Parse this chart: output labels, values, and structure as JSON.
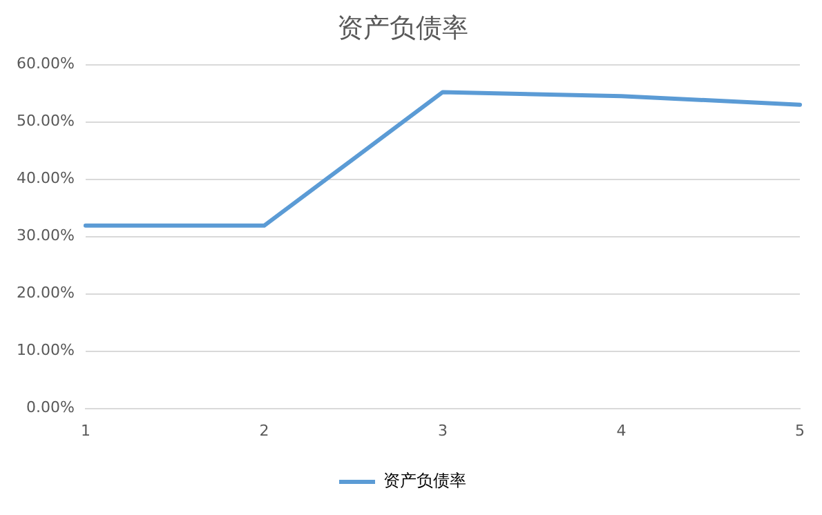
{
  "chart_data": {
    "type": "line",
    "title": "资产负债率",
    "categories": [
      "1",
      "2",
      "3",
      "4",
      "5"
    ],
    "series": [
      {
        "name": "资产负债率",
        "color": "#5b9bd5",
        "values": [
          31.9,
          31.9,
          55.2,
          54.5,
          53.0
        ]
      }
    ],
    "ylim": [
      0,
      60
    ],
    "yticks": [
      {
        "value": 0,
        "label": "0.00%"
      },
      {
        "value": 10,
        "label": "10.00%"
      },
      {
        "value": 20,
        "label": "20.00%"
      },
      {
        "value": 30,
        "label": "30.00%"
      },
      {
        "value": 40,
        "label": "40.00%"
      },
      {
        "value": 50,
        "label": "50.00%"
      },
      {
        "value": 60,
        "label": "60.00%"
      }
    ],
    "grid": "y",
    "legend": "bottom",
    "marker": "none",
    "line_style": "solid"
  }
}
